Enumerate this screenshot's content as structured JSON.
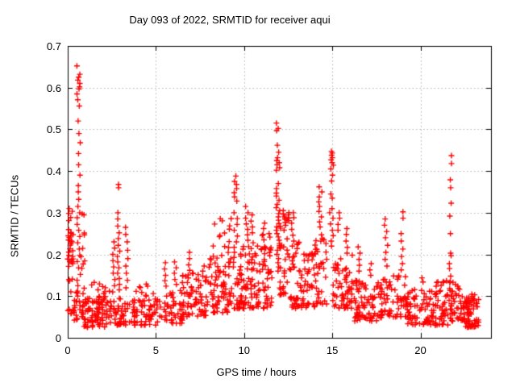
{
  "figure": {
    "background": "#ffffff",
    "border_color": "#000000",
    "grid_color": "#b3b3b3",
    "text_color": "#000000"
  },
  "chart_data": {
    "type": "scatter",
    "title": "Day 093 of 2022, SRMTID for receiver aqui",
    "xlabel": "GPS time / hours",
    "ylabel": "SRMTID / TECUs",
    "xlim": [
      0,
      24
    ],
    "ylim": [
      0,
      0.7
    ],
    "xticks": {
      "values": [
        0,
        5,
        10,
        15,
        20
      ],
      "labels": [
        "0",
        "5",
        "10",
        "15",
        "20"
      ]
    },
    "yticks": {
      "values": [
        0,
        0.1,
        0.2,
        0.3,
        0.4,
        0.5,
        0.6,
        0.7
      ],
      "labels": [
        "0",
        "0.1",
        "0.2",
        "0.3",
        "0.4",
        "0.5",
        "0.6",
        "0.7"
      ]
    },
    "grid": {
      "x_at": [
        5,
        10,
        15,
        20
      ],
      "y_at": [
        0.1,
        0.2,
        0.3,
        0.4,
        0.5,
        0.6
      ],
      "style": "dotted"
    },
    "marker": {
      "glyph": "+",
      "color": "#ff0000",
      "size": 7,
      "stroke": 1.4
    },
    "legend": "none",
    "sampling_note": "dense +-marker cloud; reconstructed as density envelopes (x0,x1,ymin,ymax,count,bias) plus explicit spike columns read from the plot",
    "series": [
      {
        "name": "SRMTID",
        "envelope_segments": [
          [
            0.0,
            0.35,
            0.05,
            0.345,
            26,
            1.0
          ],
          [
            0.02,
            0.3,
            0.17,
            0.26,
            14,
            1.0
          ],
          [
            0.3,
            0.55,
            0.04,
            0.12,
            14,
            1.5
          ],
          [
            0.75,
            1.05,
            0.05,
            0.3,
            22,
            1.8
          ],
          [
            0.9,
            2.5,
            0.025,
            0.1,
            85,
            1.4
          ],
          [
            1.1,
            2.5,
            0.09,
            0.135,
            12,
            1.2
          ],
          [
            2.6,
            5.0,
            0.03,
            0.095,
            95,
            1.4
          ],
          [
            3.5,
            5.0,
            0.09,
            0.13,
            10,
            1.2
          ],
          [
            5.0,
            6.5,
            0.035,
            0.12,
            55,
            1.4
          ],
          [
            6.5,
            8.0,
            0.05,
            0.155,
            70,
            1.4
          ],
          [
            8.0,
            9.3,
            0.06,
            0.2,
            75,
            1.5
          ],
          [
            8.2,
            9.3,
            0.2,
            0.29,
            14,
            1.2
          ],
          [
            9.3,
            11.6,
            0.07,
            0.22,
            130,
            1.6
          ],
          [
            10.5,
            11.6,
            0.2,
            0.26,
            10,
            1.2
          ],
          [
            12.0,
            12.6,
            0.1,
            0.27,
            30,
            1.3
          ],
          [
            12.15,
            12.55,
            0.275,
            0.308,
            12,
            1.0
          ],
          [
            12.6,
            14.0,
            0.07,
            0.21,
            70,
            1.5
          ],
          [
            13.0,
            14.0,
            0.18,
            0.23,
            8,
            1.2
          ],
          [
            14.0,
            14.7,
            0.08,
            0.25,
            35,
            1.4
          ],
          [
            15.0,
            16.2,
            0.07,
            0.2,
            60,
            1.5
          ],
          [
            16.2,
            17.8,
            0.04,
            0.14,
            80,
            1.4
          ],
          [
            17.8,
            19.2,
            0.05,
            0.15,
            60,
            1.4
          ],
          [
            19.2,
            21.6,
            0.03,
            0.115,
            110,
            1.4
          ],
          [
            19.5,
            21.5,
            0.115,
            0.15,
            10,
            1.2
          ],
          [
            21.6,
            22.4,
            0.04,
            0.135,
            45,
            1.3
          ],
          [
            22.4,
            23.3,
            0.025,
            0.105,
            70,
            1.4
          ]
        ],
        "spikes": [
          {
            "x": 0.62,
            "jitter": 0.1,
            "ys": [
              0.652,
              0.632,
              0.625,
              0.618,
              0.61,
              0.602,
              0.597,
              0.585,
              0.571,
              0.556,
              0.52,
              0.49,
              0.468,
              0.442,
              0.415,
              0.39,
              0.365,
              0.35,
              0.332,
              0.315,
              0.3,
              0.288,
              0.272,
              0.258,
              0.243,
              0.228,
              0.213,
              0.198,
              0.183,
              0.168,
              0.152,
              0.138,
              0.125,
              0.112,
              0.1,
              0.088,
              0.078,
              0.068
            ]
          },
          {
            "x": 2.62,
            "jitter": 0.07,
            "ys": [
              0.23,
              0.215,
              0.2,
              0.185,
              0.17,
              0.155,
              0.14,
              0.125,
              0.11
            ]
          },
          {
            "x": 2.88,
            "jitter": 0.07,
            "ys": [
              0.368,
              0.36,
              0.3,
              0.285,
              0.268,
              0.252,
              0.238,
              0.222,
              0.208,
              0.195,
              0.182,
              0.168,
              0.155,
              0.142,
              0.128,
              0.115
            ]
          },
          {
            "x": 3.35,
            "jitter": 0.07,
            "ys": [
              0.265,
              0.248,
              0.23,
              0.21,
              0.19,
              0.172,
              0.155,
              0.138,
              0.12
            ]
          },
          {
            "x": 5.55,
            "jitter": 0.07,
            "ys": [
              0.18,
              0.165,
              0.15,
              0.137,
              0.124
            ]
          },
          {
            "x": 6.1,
            "jitter": 0.07,
            "ys": [
              0.182,
              0.168,
              0.155,
              0.14,
              0.128
            ]
          },
          {
            "x": 6.9,
            "jitter": 0.06,
            "ys": [
              0.205,
              0.19,
              0.175,
              0.162
            ]
          },
          {
            "x": 7.7,
            "jitter": 0.06,
            "ys": [
              0.172,
              0.16,
              0.148
            ]
          },
          {
            "x": 9.5,
            "jitter": 0.12,
            "ys": [
              0.388,
              0.375,
              0.368,
              0.358,
              0.348,
              0.338,
              0.328,
              0.3,
              0.286,
              0.272,
              0.258,
              0.244,
              0.23,
              0.217,
              0.205,
              0.193,
              0.181,
              0.17
            ]
          },
          {
            "x": 10.15,
            "jitter": 0.08,
            "ys": [
              0.315,
              0.3,
              0.287,
              0.273,
              0.26,
              0.247,
              0.234
            ]
          },
          {
            "x": 10.45,
            "jitter": 0.07,
            "ys": [
              0.295,
              0.28,
              0.266,
              0.252
            ]
          },
          {
            "x": 11.1,
            "jitter": 0.08,
            "ys": [
              0.275,
              0.262,
              0.248,
              0.235
            ]
          },
          {
            "x": 11.92,
            "jitter": 0.1,
            "ys": [
              0.515,
              0.502,
              0.497,
              0.462,
              0.445,
              0.432,
              0.425,
              0.42,
              0.415,
              0.408,
              0.402,
              0.37,
              0.358,
              0.347,
              0.34,
              0.33,
              0.32,
              0.312,
              0.305,
              0.298,
              0.29,
              0.282,
              0.274,
              0.266,
              0.258,
              0.25,
              0.242,
              0.234,
              0.226,
              0.218,
              0.21,
              0.2,
              0.19,
              0.18,
              0.17,
              0.16
            ]
          },
          {
            "x": 12.75,
            "jitter": 0.07,
            "ys": [
              0.3,
              0.288,
              0.275,
              0.26,
              0.246,
              0.232,
              0.22
            ]
          },
          {
            "x": 14.35,
            "jitter": 0.12,
            "ys": [
              0.362,
              0.35,
              0.338,
              0.326,
              0.315,
              0.303,
              0.29,
              0.278,
              0.266
            ]
          },
          {
            "x": 14.95,
            "jitter": 0.12,
            "ys": [
              0.447,
              0.443,
              0.438,
              0.432,
              0.427,
              0.42,
              0.414,
              0.405,
              0.39,
              0.376,
              0.345,
              0.335,
              0.31,
              0.3,
              0.287,
              0.273,
              0.258,
              0.245,
              0.232,
              0.22
            ]
          },
          {
            "x": 15.35,
            "jitter": 0.07,
            "ys": [
              0.3,
              0.287,
              0.272,
              0.258
            ]
          },
          {
            "x": 15.8,
            "jitter": 0.08,
            "ys": [
              0.262,
              0.248,
              0.232,
              0.217,
              0.203
            ]
          },
          {
            "x": 16.5,
            "jitter": 0.08,
            "ys": [
              0.218,
              0.203,
              0.188,
              0.174,
              0.16
            ]
          },
          {
            "x": 17.2,
            "jitter": 0.07,
            "ys": [
              0.178,
              0.163,
              0.15
            ]
          },
          {
            "x": 18.05,
            "jitter": 0.1,
            "ys": [
              0.285,
              0.27,
              0.255,
              0.24,
              0.222,
              0.205,
              0.188,
              0.172
            ]
          },
          {
            "x": 18.95,
            "jitter": 0.08,
            "ys": [
              0.302,
              0.287,
              0.25,
              0.232,
              0.213,
              0.195,
              0.178,
              0.163
            ]
          },
          {
            "x": 21.7,
            "jitter": 0.06,
            "ys": [
              0.437,
              0.418,
              0.379,
              0.36,
              0.323,
              0.292,
              0.25,
              0.203,
              0.197,
              0.178,
              0.166,
              0.148,
              0.135
            ]
          }
        ]
      }
    ]
  }
}
